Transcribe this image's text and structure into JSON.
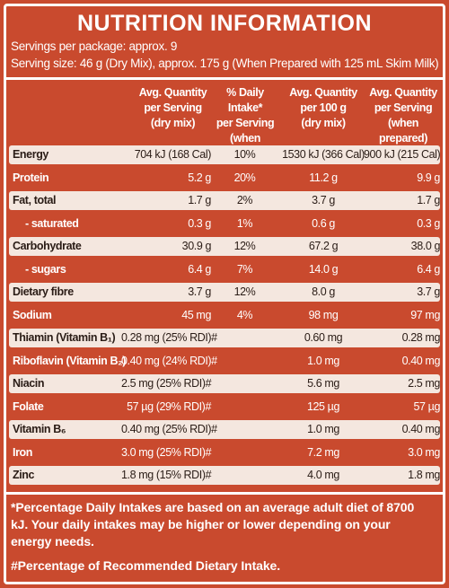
{
  "header": {
    "title": "NUTRITION INFORMATION",
    "servings_per_package": "Servings per package: approx. 9",
    "serving_size": "Serving size: 46 g (Dry Mix), approx. 175 g (When Prepared with 125 mL Skim Milk)"
  },
  "table": {
    "columns": [
      [
        "Avg. Quantity",
        "per Serving",
        "(dry mix)"
      ],
      [
        "% Daily Intake*",
        "per Serving",
        "(when prepared)"
      ],
      [
        "Avg. Quantity",
        "per 100 g",
        "(dry mix)"
      ],
      [
        "Avg. Quantity",
        "per Serving",
        "(when prepared)"
      ]
    ],
    "rows": [
      [
        "Energy",
        "704 kJ (168 Cal)",
        "10%",
        "1530 kJ (366 Cal)",
        "900 kJ (215 Cal)"
      ],
      [
        "Protein",
        "5.2 g",
        "20%",
        "11.2 g",
        "9.9 g"
      ],
      [
        "Fat, total",
        "1.7 g",
        "2%",
        "3.7 g",
        "1.7 g"
      ],
      [
        "- saturated",
        "0.3 g",
        "1%",
        "0.6 g",
        "0.3 g"
      ],
      [
        "Carbohydrate",
        "30.9 g",
        "12%",
        "67.2 g",
        "38.0 g"
      ],
      [
        "- sugars",
        "6.4 g",
        "7%",
        "14.0 g",
        "6.4 g"
      ],
      [
        "Dietary fibre",
        "3.7 g",
        "12%",
        "8.0 g",
        "3.7 g"
      ],
      [
        "Sodium",
        "45 mg",
        "4%",
        "98 mg",
        "97 mg"
      ],
      [
        "Thiamin (Vitamin B₁)",
        "0.28 mg (25% RDI)#",
        null,
        "0.60 mg",
        "0.28 mg"
      ],
      [
        "Riboflavin (Vitamin B₂)",
        "0.40 mg (24% RDI)#",
        null,
        "1.0 mg",
        "0.40 mg"
      ],
      [
        "Niacin",
        "2.5 mg (25% RDI)#",
        null,
        "5.6 mg",
        "2.5 mg"
      ],
      [
        "Folate",
        "57 µg (29% RDI)#",
        null,
        "125 µg",
        "57 µg"
      ],
      [
        "Vitamin B₆",
        "0.40 mg (25% RDI)#",
        null,
        "1.0 mg",
        "0.40 mg"
      ],
      [
        "Iron",
        "3.0 mg (25% RDI)#",
        null,
        "7.2 mg",
        "3.0 mg"
      ],
      [
        "Zinc",
        "1.8 mg (15% RDI)#",
        null,
        "4.0 mg",
        "1.8 mg"
      ]
    ]
  },
  "footnotes": [
    "*Percentage Daily Intakes are based on an average adult diet of 8700 kJ. Your daily intakes may be higher or lower depending on your energy needs.",
    "#Percentage of Recommended Dietary Intake."
  ]
}
